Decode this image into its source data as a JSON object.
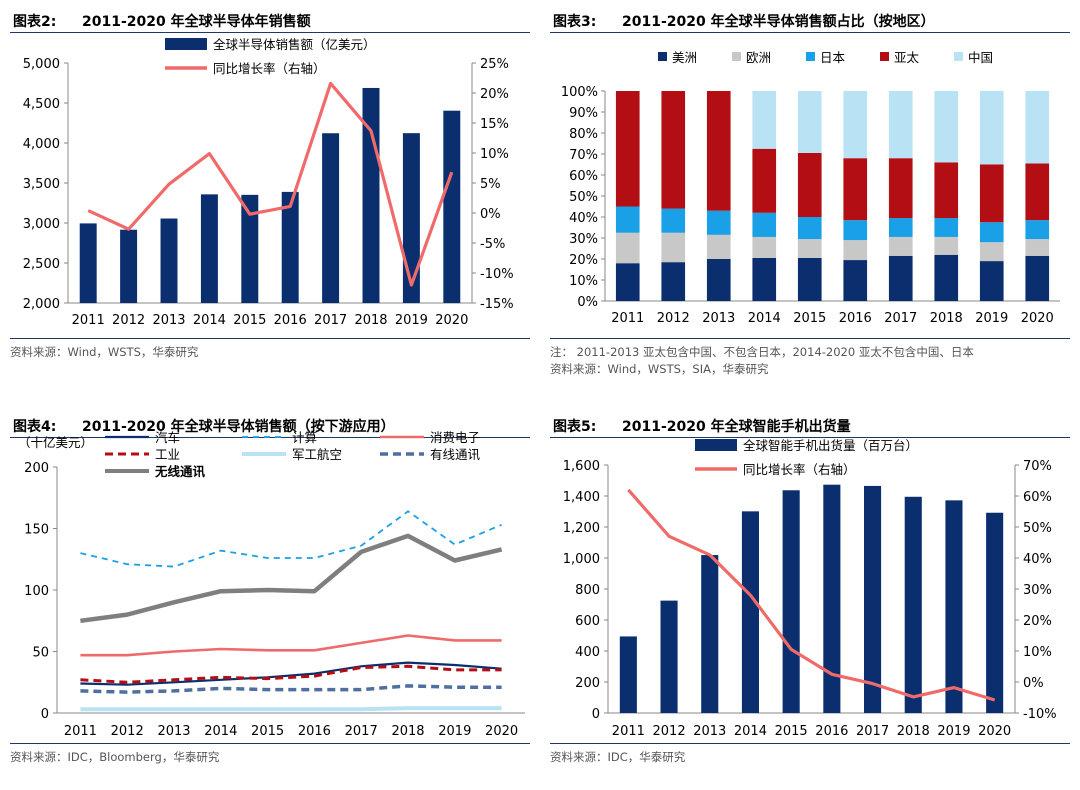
{
  "panels": {
    "p1": {
      "label": "图表2:",
      "title": "2011-2020 年全球半导体年销售额",
      "source": "资料来源：Wind，WSTS，华泰研究"
    },
    "p2": {
      "label": "图表3:",
      "title": "2011-2020 年全球半导体销售额占比（按地区）",
      "note": "注：  2011-2013 亚太包含中国、不包含日本，2014-2020 亚太不包含中国、日本",
      "source": "资料来源：Wind，WSTS，SIA，华泰研究"
    },
    "p3": {
      "label": "图表4:",
      "title": "2011-2020 年全球半导体销售额（按下游应用）",
      "source": "资料来源：IDC，Bloomberg，华泰研究"
    },
    "p4": {
      "label": "图表5:",
      "title": "2011-2020 年全球智能手机出货量",
      "source": "资料来源：IDC，华泰研究"
    }
  },
  "colors": {
    "navy": "#0b2f6e",
    "salmon": "#f06a6a",
    "gray": "#c8c8c8",
    "blue": "#19a0e6",
    "red": "#b20e14",
    "lightblue": "#b9e3f5",
    "darkgray": "#7f7f7f",
    "steel": "#4f6f9f"
  },
  "chart_data": [
    {
      "type": "bar",
      "categories": [
        "2011",
        "2012",
        "2013",
        "2014",
        "2015",
        "2016",
        "2017",
        "2018",
        "2019",
        "2020"
      ],
      "series": [
        {
          "name": "全球半导体销售额（亿美元）",
          "type": "bar",
          "axis": "left",
          "values": [
            2995,
            2916,
            3056,
            3358,
            3352,
            3389,
            4122,
            4688,
            4123,
            4404
          ]
        },
        {
          "name": "同比增长率（右轴）",
          "type": "line",
          "axis": "right",
          "values": [
            0.4,
            -2.7,
            4.8,
            9.9,
            -0.2,
            1.1,
            21.6,
            13.7,
            -12.0,
            6.8
          ]
        }
      ],
      "ylim": [
        2000,
        5000
      ],
      "yticks": [
        "2,000",
        "2,500",
        "3,000",
        "3,500",
        "4,000",
        "4,500",
        "5,000"
      ],
      "y2lim": [
        -15,
        25
      ],
      "y2ticks": [
        "-15%",
        "-10%",
        "-5%",
        "0%",
        "5%",
        "10%",
        "15%",
        "20%",
        "25%"
      ]
    },
    {
      "type": "bar",
      "stacked": true,
      "categories": [
        "2011",
        "2012",
        "2013",
        "2014",
        "2015",
        "2016",
        "2017",
        "2018",
        "2019",
        "2020"
      ],
      "series": [
        {
          "name": "美洲",
          "values": [
            18,
            18.5,
            20,
            20.5,
            20.5,
            19.5,
            21.5,
            22,
            19,
            21.5
          ]
        },
        {
          "name": "欧洲",
          "values": [
            14.5,
            14,
            11.5,
            10,
            9,
            9.5,
            9,
            8.5,
            9,
            8
          ]
        },
        {
          "name": "日本",
          "values": [
            12.5,
            11.5,
            11.5,
            11.5,
            10.5,
            9.5,
            9,
            9,
            9.5,
            9
          ]
        },
        {
          "name": "亚太",
          "values": [
            55,
            56,
            57,
            30.5,
            30.5,
            29.5,
            28.5,
            26.5,
            27.5,
            27
          ]
        },
        {
          "name": "中国",
          "values": [
            0,
            0,
            0,
            27.5,
            29.5,
            32,
            32,
            34,
            35,
            34.5
          ]
        }
      ],
      "ylim": [
        0,
        100
      ],
      "yticks": [
        "0%",
        "10%",
        "20%",
        "30%",
        "40%",
        "50%",
        "60%",
        "70%",
        "80%",
        "90%",
        "100%"
      ]
    },
    {
      "type": "line",
      "categories": [
        "2011",
        "2012",
        "2013",
        "2014",
        "2015",
        "2016",
        "2017",
        "2018",
        "2019",
        "2020"
      ],
      "unit_label": "（十亿美元）",
      "series": [
        {
          "name": "汽车",
          "style": "solid-navy",
          "values": [
            24,
            23,
            25,
            27,
            29,
            32,
            38,
            41,
            39,
            36
          ]
        },
        {
          "name": "计算",
          "style": "dash-blue",
          "values": [
            130,
            121,
            119,
            132,
            126,
            126,
            136,
            164,
            137,
            153
          ]
        },
        {
          "name": "消费电子",
          "style": "solid-salmon",
          "values": [
            47,
            47,
            50,
            52,
            51,
            51,
            57,
            63,
            59,
            59
          ]
        },
        {
          "name": "工业",
          "style": "dash-red",
          "values": [
            27,
            25,
            27,
            29,
            28,
            30,
            37,
            38,
            35,
            35
          ]
        },
        {
          "name": "军工航空",
          "style": "solid-lightblue",
          "values": [
            3,
            3,
            3,
            3,
            3,
            3,
            3,
            4,
            4,
            4
          ]
        },
        {
          "name": "有线通讯",
          "style": "dash-steel",
          "values": [
            18,
            17,
            18,
            20,
            19,
            19,
            19,
            22,
            21,
            21
          ]
        },
        {
          "name": "无线通讯",
          "style": "thick-gray",
          "values": [
            75,
            80,
            90,
            99,
            100,
            99,
            131,
            144,
            124,
            133
          ]
        }
      ],
      "ylim": [
        0,
        200
      ],
      "yticks": [
        "0",
        "50",
        "100",
        "150",
        "200"
      ]
    },
    {
      "type": "bar",
      "categories": [
        "2011",
        "2012",
        "2013",
        "2014",
        "2015",
        "2016",
        "2017",
        "2018",
        "2019",
        "2020"
      ],
      "series": [
        {
          "name": "全球智能手机出货量（百万台）",
          "type": "bar",
          "axis": "left",
          "values": [
            494,
            725,
            1019,
            1301,
            1437,
            1473,
            1465,
            1395,
            1372,
            1292
          ]
        },
        {
          "name": "同比增长率（右轴）",
          "type": "line",
          "axis": "right",
          "values": [
            62,
            47,
            41,
            28,
            10.5,
            2.5,
            -0.5,
            -4.8,
            -1.8,
            -5.8
          ]
        }
      ],
      "ylim": [
        0,
        1600
      ],
      "yticks": [
        "0",
        "200",
        "400",
        "600",
        "800",
        "1,000",
        "1,200",
        "1,400",
        "1,600"
      ],
      "y2lim": [
        -10,
        70
      ],
      "y2ticks": [
        "-10%",
        "0%",
        "10%",
        "20%",
        "30%",
        "40%",
        "50%",
        "60%",
        "70%"
      ]
    }
  ]
}
